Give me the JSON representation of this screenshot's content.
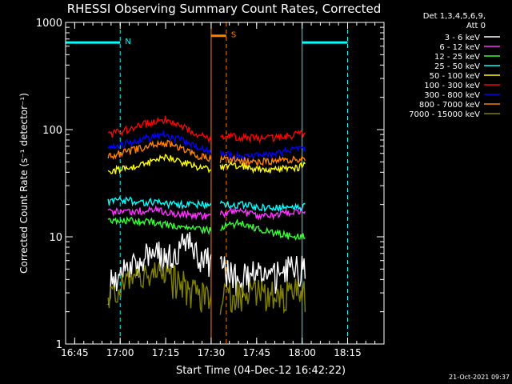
{
  "chart_data": {
    "type": "line",
    "title": "RHESSI Observing Summary Count Rates, Corrected",
    "xlabel": "Start Time (04-Dec-12 16:42:22)",
    "ylabel": "Corrected Count Rate (s⁻¹ detector⁻¹)",
    "yscale": "log",
    "xlim": [
      -5,
      100
    ],
    "ylim": [
      1,
      1000
    ],
    "x_unit": "minutes after 16:47",
    "x_ticks": [
      {
        "x": -2,
        "label": "16:45"
      },
      {
        "x": 13,
        "label": "17:00"
      },
      {
        "x": 28,
        "label": "17:15"
      },
      {
        "x": 43,
        "label": "17:30"
      },
      {
        "x": 58,
        "label": "17:45"
      },
      {
        "x": 73,
        "label": "18:00"
      },
      {
        "x": 88,
        "label": "18:15"
      }
    ],
    "y_ticks": [
      {
        "y": 1,
        "label": "1"
      },
      {
        "y": 10,
        "label": "10"
      },
      {
        "y": 100,
        "label": "100"
      },
      {
        "y": 1000,
        "label": "1000"
      }
    ],
    "legend_header": [
      "Det 1,3,4,5,6,9,",
      "Att 0"
    ],
    "legend_position": "right",
    "series": [
      {
        "name": "3 - 6 keV",
        "color": "#ffffff",
        "x": [
          9,
          15,
          21,
          25,
          28,
          32,
          35,
          42,
          52,
          58,
          64,
          70,
          74
        ],
        "y": [
          3.5,
          6,
          6.5,
          7,
          6,
          7.5,
          9,
          6,
          4,
          4.5,
          4.5,
          5,
          5
        ]
      },
      {
        "name": "6 - 12 keV",
        "color": "#ff33ff",
        "x": [
          9,
          15,
          21,
          25,
          28,
          32,
          35,
          42,
          52,
          58,
          64,
          70,
          74
        ],
        "y": [
          17,
          17,
          17.5,
          18,
          17,
          16.5,
          16,
          15.5,
          17.5,
          16,
          16,
          17,
          18
        ]
      },
      {
        "name": "12 - 25 keV",
        "color": "#33ff33",
        "x": [
          9,
          15,
          21,
          25,
          28,
          32,
          35,
          42,
          52,
          58,
          64,
          70,
          74
        ],
        "y": [
          14,
          14,
          14,
          13.5,
          13,
          12.5,
          12,
          11.5,
          13.5,
          12,
          11,
          10,
          10
        ]
      },
      {
        "name": "25 - 50 keV",
        "color": "#00ffff",
        "x": [
          9,
          15,
          21,
          25,
          28,
          32,
          35,
          42,
          52,
          58,
          64,
          70,
          74
        ],
        "y": [
          21,
          22,
          21,
          21,
          20.5,
          20,
          20,
          20,
          20,
          19,
          18.5,
          19,
          19
        ]
      },
      {
        "name": "50 - 100 keV",
        "color": "#ffff00",
        "x": [
          9,
          15,
          21,
          25,
          28,
          32,
          35,
          42,
          52,
          58,
          64,
          70,
          74
        ],
        "y": [
          40,
          44,
          48,
          52,
          55,
          52,
          48,
          43,
          47,
          43,
          42,
          44,
          46
        ]
      },
      {
        "name": "100 - 300 keV",
        "color": "#ff0000",
        "x": [
          9,
          15,
          21,
          25,
          28,
          32,
          35,
          42,
          52,
          58,
          64,
          70,
          74
        ],
        "y": [
          88,
          100,
          112,
          120,
          125,
          112,
          100,
          83,
          86,
          82,
          83,
          89,
          94
        ]
      },
      {
        "name": "300 - 800 keV",
        "color": "#0000ff",
        "x": [
          9,
          15,
          21,
          25,
          28,
          32,
          35,
          42,
          52,
          58,
          64,
          70,
          74
        ],
        "y": [
          66,
          74,
          82,
          88,
          90,
          82,
          74,
          62,
          56,
          57,
          60,
          64,
          68
        ]
      },
      {
        "name": "800 - 7000 keV",
        "color": "#ff7f00",
        "x": [
          9,
          15,
          21,
          25,
          28,
          32,
          35,
          42,
          52,
          58,
          64,
          70,
          74
        ],
        "y": [
          55,
          62,
          68,
          74,
          75,
          68,
          62,
          53,
          52,
          50,
          51,
          53,
          55
        ]
      },
      {
        "name": "7000 - 15000 keV",
        "color": "#808000",
        "x": [
          9,
          15,
          21,
          25,
          28,
          32,
          35,
          42,
          52,
          58,
          64,
          70,
          74
        ],
        "y": [
          2.5,
          3.5,
          4,
          4.5,
          4,
          4,
          3.5,
          2.5,
          3,
          3,
          3,
          3,
          3
        ]
      }
    ],
    "markers": [
      {
        "label": "N",
        "color": "#00ffff",
        "start": -5,
        "end": 13,
        "level": 650
      },
      {
        "label": "S",
        "color": "#ff7f00",
        "start": 43,
        "end": 48,
        "level": 750
      },
      {
        "label": "",
        "color": "#00ffff",
        "start": 73,
        "end": 88,
        "level": 650
      }
    ],
    "timestamp": "21-Oct-2021 09:37"
  }
}
